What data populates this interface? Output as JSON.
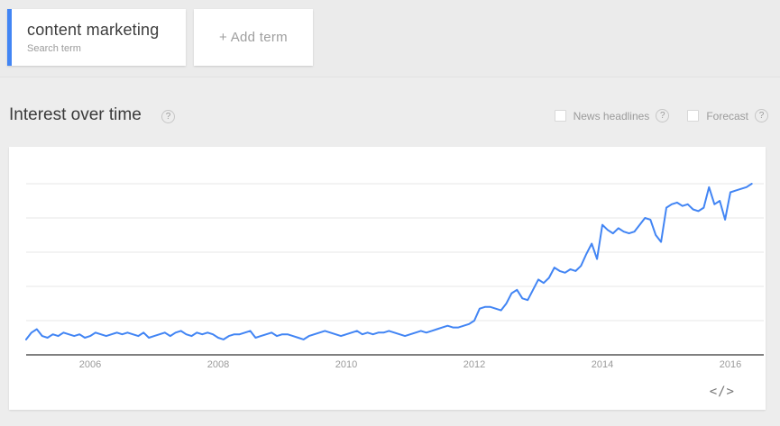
{
  "toolbar": {
    "term_card": {
      "title": "content marketing",
      "subtitle": "Search term",
      "accent_color": "#4285f4"
    },
    "add_term_label": "+ Add term"
  },
  "header": {
    "title": "Interest over time",
    "help_glyph": "?",
    "options": [
      {
        "label": "News headlines",
        "checked": false
      },
      {
        "label": "Forecast",
        "checked": false
      }
    ]
  },
  "footer": {
    "embed_label": "</>"
  },
  "chart_data": {
    "type": "line",
    "title": "Interest over time",
    "x_start": "2005-01",
    "x_end": "2016-05",
    "x_interval": "month",
    "x_tick_labels": [
      "2006",
      "2008",
      "2010",
      "2012",
      "2014",
      "2016"
    ],
    "x_tick_indices": [
      12,
      36,
      60,
      84,
      108,
      132
    ],
    "ylim": [
      0,
      100
    ],
    "gridline_values": [
      20,
      40,
      60,
      80,
      100
    ],
    "grid": true,
    "legend": "none",
    "line_color": "#4285f4",
    "series": [
      {
        "name": "content marketing",
        "values": [
          9,
          13,
          15,
          11,
          10,
          12,
          11,
          13,
          12,
          11,
          12,
          10,
          11,
          13,
          12,
          11,
          12,
          13,
          12,
          13,
          12,
          11,
          13,
          10,
          11,
          12,
          13,
          11,
          13,
          14,
          12,
          11,
          13,
          12,
          13,
          12,
          10,
          9,
          11,
          12,
          12,
          13,
          14,
          10,
          11,
          12,
          13,
          11,
          12,
          12,
          11,
          10,
          9,
          11,
          12,
          13,
          14,
          13,
          12,
          11,
          12,
          13,
          14,
          12,
          13,
          12,
          13,
          13,
          14,
          13,
          12,
          11,
          12,
          13,
          14,
          13,
          14,
          15,
          16,
          17,
          16,
          16,
          17,
          18,
          20,
          27,
          28,
          28,
          27,
          26,
          30,
          36,
          38,
          33,
          32,
          38,
          44,
          42,
          45,
          51,
          49,
          48,
          50,
          49,
          52,
          59,
          65,
          56,
          76,
          73,
          71,
          74,
          72,
          71,
          72,
          76,
          80,
          79,
          70,
          66,
          86,
          88,
          89,
          87,
          88,
          85,
          84,
          86,
          98,
          88,
          90,
          79,
          95,
          96,
          97,
          98,
          100
        ]
      }
    ]
  }
}
